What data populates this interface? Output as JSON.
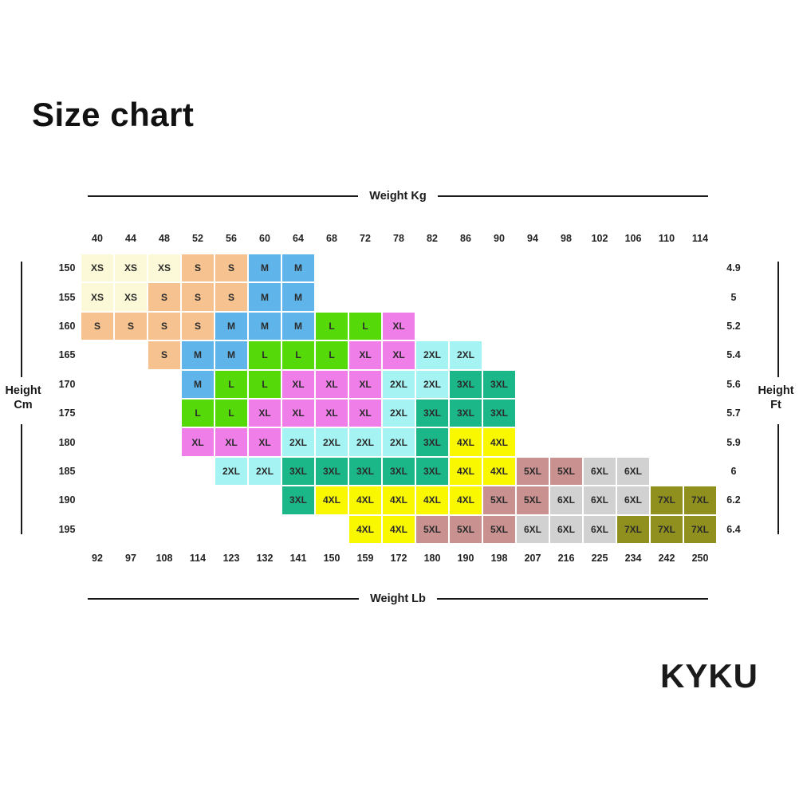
{
  "title": "Size chart",
  "brand": "KYKU",
  "axes": {
    "top_label": "Weight Kg",
    "bottom_label": "Weight Lb",
    "left_label_line1": "Height",
    "left_label_line2": "Cm",
    "right_label_line1": "Height",
    "right_label_line2": "Ft"
  },
  "chart_data": {
    "type": "heatmap",
    "title": "Size chart",
    "x_axis_top": {
      "label": "Weight Kg",
      "ticks": [
        40,
        44,
        48,
        52,
        56,
        60,
        64,
        68,
        72,
        78,
        82,
        86,
        90,
        94,
        98,
        102,
        106,
        110,
        114
      ]
    },
    "x_axis_bottom": {
      "label": "Weight Lb",
      "ticks": [
        92,
        97,
        108,
        114,
        123,
        132,
        141,
        150,
        159,
        172,
        180,
        190,
        198,
        207,
        216,
        225,
        234,
        242,
        250
      ]
    },
    "y_axis_left": {
      "label": "Height Cm",
      "ticks": [
        "150",
        "155",
        "160",
        "165",
        "170",
        "175",
        "180",
        "185",
        "190",
        "195"
      ]
    },
    "y_axis_right": {
      "label": "Height Ft",
      "ticks": [
        "4.9",
        "5",
        "5.2",
        "5.4",
        "5.6",
        "5.7",
        "5.9",
        "6",
        "6.2",
        "6.4"
      ]
    },
    "rows": [
      [
        "XS",
        "XS",
        "XS",
        "S",
        "S",
        "M",
        "M",
        "",
        "",
        "",
        "",
        "",
        "",
        "",
        "",
        "",
        "",
        "",
        ""
      ],
      [
        "XS",
        "XS",
        "S",
        "S",
        "S",
        "M",
        "M",
        "",
        "",
        "",
        "",
        "",
        "",
        "",
        "",
        "",
        "",
        "",
        ""
      ],
      [
        "S",
        "S",
        "S",
        "S",
        "M",
        "M",
        "M",
        "L",
        "L",
        "XL",
        "",
        "",
        "",
        "",
        "",
        "",
        "",
        "",
        ""
      ],
      [
        "",
        "",
        "S",
        "M",
        "M",
        "L",
        "L",
        "L",
        "XL",
        "XL",
        "2XL",
        "2XL",
        "",
        "",
        "",
        "",
        "",
        "",
        ""
      ],
      [
        "",
        "",
        "",
        "M",
        "L",
        "L",
        "XL",
        "XL",
        "XL",
        "2XL",
        "2XL",
        "3XL",
        "3XL",
        "",
        "",
        "",
        "",
        "",
        ""
      ],
      [
        "",
        "",
        "",
        "L",
        "L",
        "XL",
        "XL",
        "XL",
        "XL",
        "2XL",
        "3XL",
        "3XL",
        "3XL",
        "",
        "",
        "",
        "",
        "",
        ""
      ],
      [
        "",
        "",
        "",
        "XL",
        "XL",
        "XL",
        "2XL",
        "2XL",
        "2XL",
        "2XL",
        "3XL",
        "4XL",
        "4XL",
        "",
        "",
        "",
        "",
        "",
        ""
      ],
      [
        "",
        "",
        "",
        "",
        "2XL",
        "2XL",
        "3XL",
        "3XL",
        "3XL",
        "3XL",
        "3XL",
        "4XL",
        "4XL",
        "5XL",
        "5XL",
        "6XL",
        "6XL",
        "",
        ""
      ],
      [
        "",
        "",
        "",
        "",
        "",
        "",
        "3XL",
        "4XL",
        "4XL",
        "4XL",
        "4XL",
        "4XL",
        "5XL",
        "5XL",
        "6XL",
        "6XL",
        "6XL",
        "7XL",
        "7XL"
      ],
      [
        "",
        "",
        "",
        "",
        "",
        "",
        "",
        "",
        "4XL",
        "4XL",
        "5XL",
        "5XL",
        "5XL",
        "6XL",
        "6XL",
        "6XL",
        "7XL",
        "7XL",
        "7XL"
      ]
    ],
    "size_colors": {
      "XS": "#FCF9D8",
      "S": "#F5C290",
      "M": "#5FB4E9",
      "L": "#55D909",
      "XL": "#F07EE9",
      "2XL": "#A5F3F3",
      "3XL": "#1CB789",
      "4XL": "#FAF800",
      "5XL": "#CA9191",
      "6XL": "#D1D1D1",
      "7XL": "#90901E"
    },
    "legend_position": "none",
    "grid": false
  }
}
